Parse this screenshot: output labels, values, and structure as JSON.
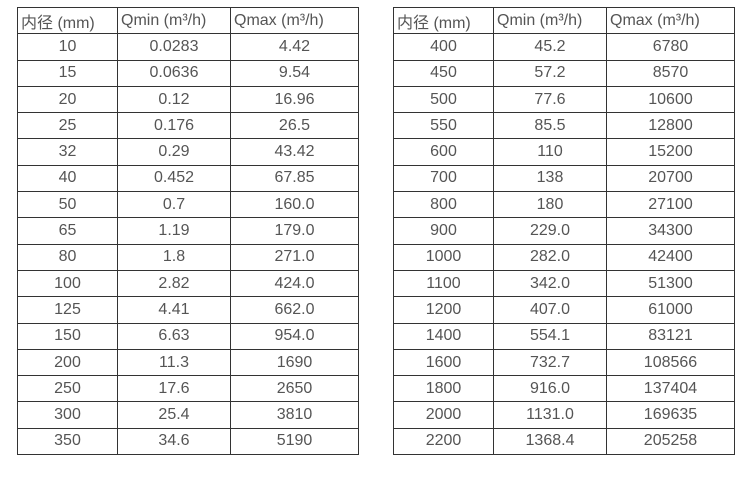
{
  "colors": {
    "border": "#333333",
    "text": "#555555",
    "background": "#ffffff"
  },
  "tables": [
    {
      "name": "flow-spec-table-small-diameters",
      "headers": [
        "内径 (mm)",
        "Qmin (m³/h)",
        "Qmax (m³/h)"
      ],
      "rows": [
        [
          "10",
          "0.0283",
          "4.42"
        ],
        [
          "15",
          "0.0636",
          "9.54"
        ],
        [
          "20",
          "0.12",
          "16.96"
        ],
        [
          "25",
          "0.176",
          "26.5"
        ],
        [
          "32",
          "0.29",
          "43.42"
        ],
        [
          "40",
          "0.452",
          "67.85"
        ],
        [
          "50",
          "0.7",
          "160.0"
        ],
        [
          "65",
          "1.19",
          "179.0"
        ],
        [
          "80",
          "1.8",
          "271.0"
        ],
        [
          "100",
          "2.82",
          "424.0"
        ],
        [
          "125",
          "4.41",
          "662.0"
        ],
        [
          "150",
          "6.63",
          "954.0"
        ],
        [
          "200",
          "11.3",
          "1690"
        ],
        [
          "250",
          "17.6",
          "2650"
        ],
        [
          "300",
          "25.4",
          "3810"
        ],
        [
          "350",
          "34.6",
          "5190"
        ]
      ]
    },
    {
      "name": "flow-spec-table-large-diameters",
      "headers": [
        "内径 (mm)",
        "Qmin (m³/h)",
        "Qmax (m³/h)"
      ],
      "rows": [
        [
          "400",
          "45.2",
          "6780"
        ],
        [
          "450",
          "57.2",
          "8570"
        ],
        [
          "500",
          "77.6",
          "10600"
        ],
        [
          "550",
          "85.5",
          "12800"
        ],
        [
          "600",
          "110",
          "15200"
        ],
        [
          "700",
          "138",
          "20700"
        ],
        [
          "800",
          "180",
          "27100"
        ],
        [
          "900",
          "229.0",
          "34300"
        ],
        [
          "1000",
          "282.0",
          "42400"
        ],
        [
          "1100",
          "342.0",
          "51300"
        ],
        [
          "1200",
          "407.0",
          "61000"
        ],
        [
          "1400",
          "554.1",
          "83121"
        ],
        [
          "1600",
          "732.7",
          "108566"
        ],
        [
          "1800",
          "916.0",
          "137404"
        ],
        [
          "2000",
          "1131.0",
          "169635"
        ],
        [
          "2200",
          "1368.4",
          "205258"
        ]
      ]
    }
  ]
}
